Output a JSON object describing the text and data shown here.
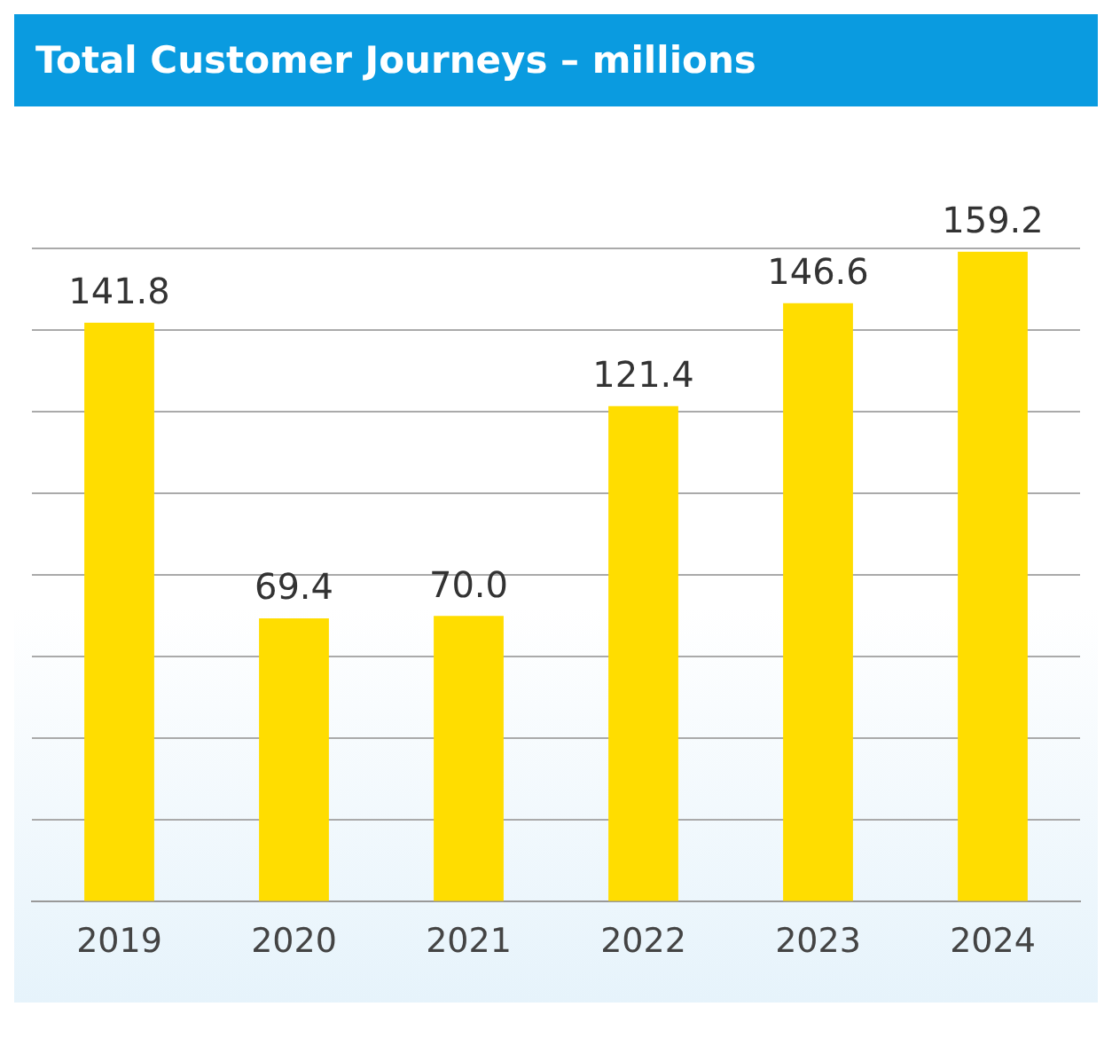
{
  "chart_data": {
    "type": "bar",
    "title": "Total Customer Journeys – millions",
    "categories": [
      "2019",
      "2020",
      "2021",
      "2022",
      "2023",
      "2024"
    ],
    "values": [
      141.8,
      69.4,
      70.0,
      121.4,
      146.6,
      159.2
    ],
    "value_labels": [
      "141.8",
      "69.4",
      "70.0",
      "121.4",
      "146.6",
      "159.2"
    ],
    "color": "#ffdd00",
    "ylim": [
      0,
      160
    ],
    "yticks": [
      {
        "value": 0,
        "label": null
      },
      {
        "value": 20,
        "label": null
      },
      {
        "value": 40,
        "label": null
      },
      {
        "value": 60,
        "label": null
      },
      {
        "value": 80,
        "label": null
      },
      {
        "value": 100,
        "label": null
      },
      {
        "value": 120,
        "label": null
      },
      {
        "value": 140,
        "label": null
      },
      {
        "value": 160,
        "label": null
      }
    ],
    "grid": "y",
    "legend": false,
    "tick_labels": "x"
  }
}
